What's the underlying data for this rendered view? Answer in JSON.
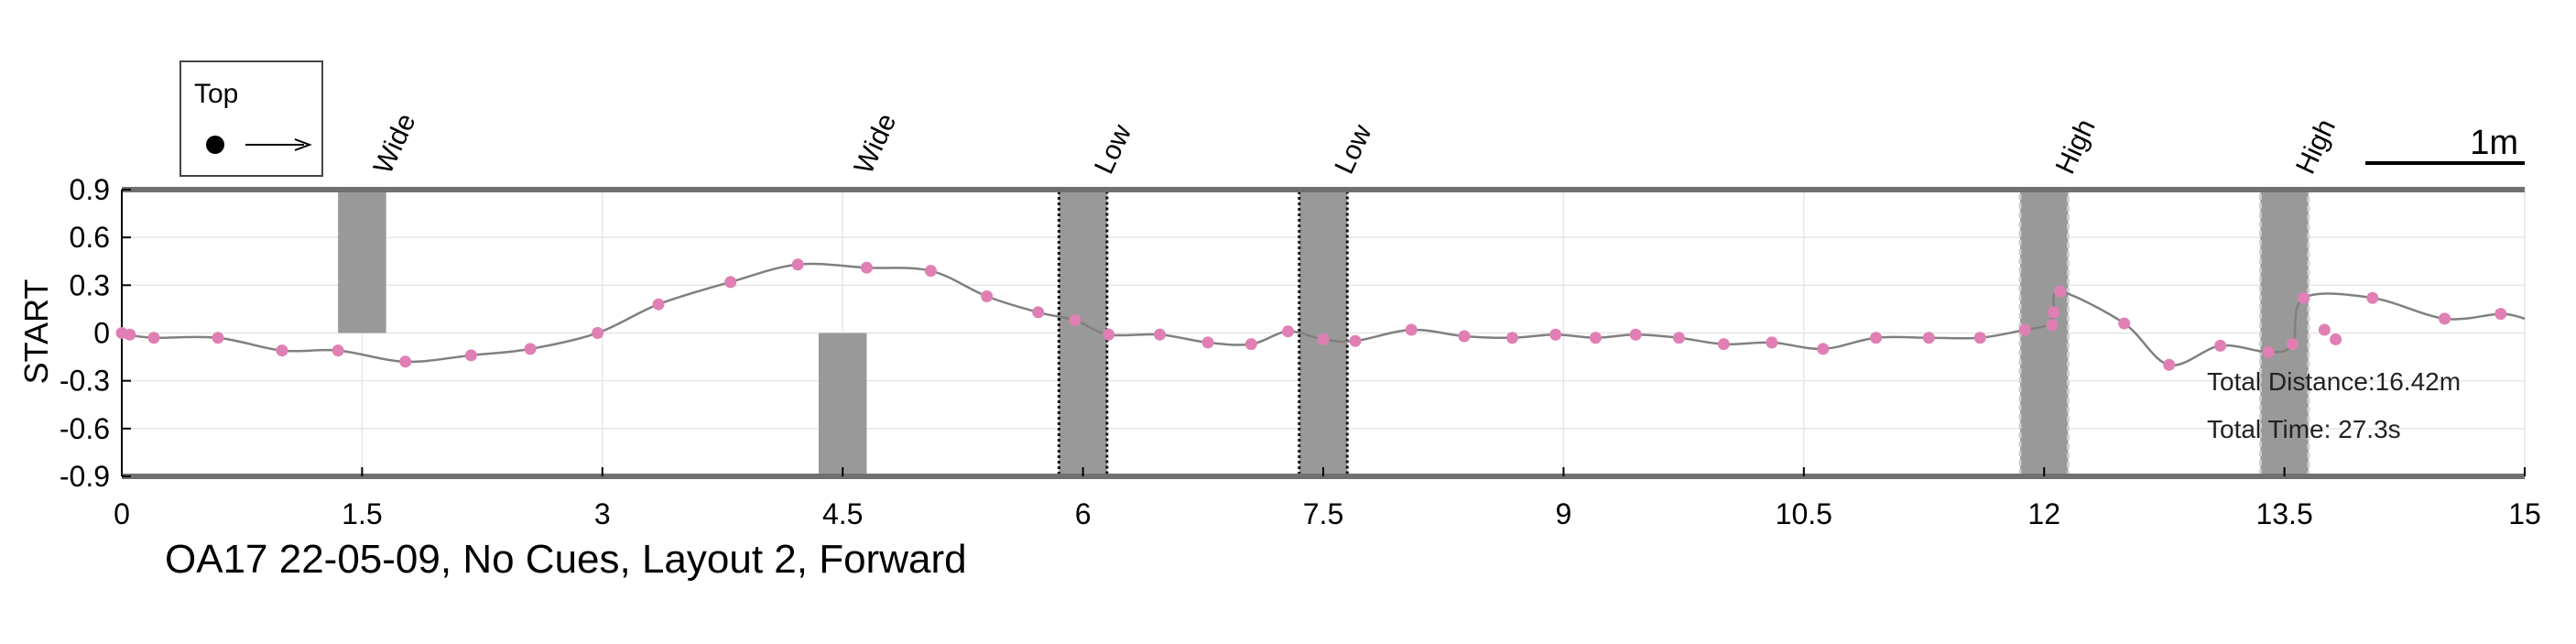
{
  "chart_data": {
    "type": "line",
    "title": "OA17 22-05-09, No Cues, Layout 2, Forward",
    "ylabel": "START",
    "xlim": [
      0,
      15
    ],
    "ylim": [
      -0.9,
      0.9
    ],
    "xticks": [
      0,
      1.5,
      3,
      4.5,
      6,
      7.5,
      9,
      10.5,
      12,
      13.5,
      15
    ],
    "xtick_labels": [
      "0",
      "1.5",
      "3",
      "4.5",
      "6",
      "7.5",
      "9",
      "10.5",
      "12",
      "13.5",
      "15"
    ],
    "yticks": [
      0.9,
      0.6,
      0.3,
      0,
      -0.3,
      -0.6,
      -0.9
    ],
    "ytick_labels": [
      "0.9",
      "0.6",
      "0.3",
      "0",
      "-0.3",
      "-0.6",
      "-0.9"
    ],
    "grid": true,
    "legend": {
      "label": "Top",
      "placement": "top-left"
    },
    "scale_bar_label": "1m",
    "line_color": "#808080",
    "point_color": "#e07fb4",
    "obstacle_color": "#999999",
    "points": [
      [
        0.0,
        0.0
      ],
      [
        0.04,
        -0.01
      ],
      [
        0.2,
        -0.03
      ],
      [
        0.6,
        -0.03
      ],
      [
        1.0,
        -0.11
      ],
      [
        1.35,
        -0.11
      ],
      [
        1.77,
        -0.18
      ],
      [
        2.18,
        -0.14
      ],
      [
        2.55,
        -0.1
      ],
      [
        2.97,
        0.0
      ],
      [
        3.35,
        0.18
      ],
      [
        3.8,
        0.32
      ],
      [
        4.22,
        0.43
      ],
      [
        4.65,
        0.41
      ],
      [
        5.05,
        0.39
      ],
      [
        5.4,
        0.23
      ],
      [
        5.72,
        0.13
      ],
      [
        5.95,
        0.08
      ],
      [
        6.16,
        -0.01
      ],
      [
        6.48,
        -0.01
      ],
      [
        6.78,
        -0.06
      ],
      [
        7.05,
        -0.07
      ],
      [
        7.28,
        0.01
      ],
      [
        7.5,
        -0.04
      ],
      [
        7.7,
        -0.05
      ],
      [
        8.05,
        0.02
      ],
      [
        8.38,
        -0.02
      ],
      [
        8.68,
        -0.03
      ],
      [
        8.95,
        -0.01
      ],
      [
        9.2,
        -0.03
      ],
      [
        9.45,
        -0.01
      ],
      [
        9.72,
        -0.03
      ],
      [
        10.0,
        -0.07
      ],
      [
        10.3,
        -0.06
      ],
      [
        10.62,
        -0.1
      ],
      [
        10.95,
        -0.03
      ],
      [
        11.28,
        -0.03
      ],
      [
        11.6,
        -0.03
      ],
      [
        11.88,
        0.02
      ],
      [
        12.02,
        0.05
      ],
      [
        12.06,
        0.13
      ],
      [
        12.1,
        0.26
      ],
      [
        12.5,
        0.06
      ],
      [
        12.78,
        -0.2
      ],
      [
        13.1,
        -0.08
      ],
      [
        13.4,
        -0.12
      ],
      [
        13.55,
        -0.07
      ],
      [
        13.62,
        0.22
      ],
      [
        14.05,
        0.22
      ],
      [
        14.5,
        0.09
      ],
      [
        14.85,
        0.12
      ],
      [
        15.0,
        0.09
      ]
    ],
    "markers": [
      [
        0.0,
        0.0
      ],
      [
        0.05,
        -0.01
      ],
      [
        0.2,
        -0.03
      ],
      [
        0.6,
        -0.03
      ],
      [
        1.0,
        -0.11
      ],
      [
        1.35,
        -0.11
      ],
      [
        1.77,
        -0.18
      ],
      [
        2.18,
        -0.14
      ],
      [
        2.55,
        -0.1
      ],
      [
        2.97,
        0.0
      ],
      [
        3.35,
        0.18
      ],
      [
        3.8,
        0.32
      ],
      [
        4.22,
        0.43
      ],
      [
        4.65,
        0.41
      ],
      [
        5.05,
        0.39
      ],
      [
        5.4,
        0.23
      ],
      [
        5.72,
        0.13
      ],
      [
        5.95,
        0.08
      ],
      [
        6.16,
        -0.01
      ],
      [
        6.48,
        -0.01
      ],
      [
        6.78,
        -0.06
      ],
      [
        7.05,
        -0.07
      ],
      [
        7.28,
        0.01
      ],
      [
        7.5,
        -0.04
      ],
      [
        7.7,
        -0.05
      ],
      [
        8.05,
        0.02
      ],
      [
        8.38,
        -0.02
      ],
      [
        8.68,
        -0.03
      ],
      [
        8.95,
        -0.01
      ],
      [
        9.2,
        -0.03
      ],
      [
        9.45,
        -0.01
      ],
      [
        9.72,
        -0.03
      ],
      [
        10.0,
        -0.07
      ],
      [
        10.3,
        -0.06
      ],
      [
        10.62,
        -0.1
      ],
      [
        10.95,
        -0.03
      ],
      [
        11.28,
        -0.03
      ],
      [
        11.6,
        -0.03
      ],
      [
        11.88,
        0.02
      ],
      [
        12.05,
        0.05
      ],
      [
        12.06,
        0.13
      ],
      [
        12.1,
        0.26
      ],
      [
        12.5,
        0.06
      ],
      [
        12.78,
        -0.2
      ],
      [
        13.1,
        -0.08
      ],
      [
        13.4,
        -0.12
      ],
      [
        13.55,
        -0.07
      ],
      [
        13.62,
        0.22
      ],
      [
        13.75,
        0.02
      ],
      [
        13.82,
        -0.04
      ],
      [
        14.05,
        0.22
      ],
      [
        14.5,
        0.09
      ],
      [
        14.85,
        0.12
      ]
    ],
    "obstacles": [
      {
        "label": "Wide",
        "x0": 1.35,
        "x1": 1.65,
        "y0": 0.0,
        "y1": 0.9,
        "style": "solid"
      },
      {
        "label": "Wide",
        "x0": 4.35,
        "x1": 4.65,
        "y0": -0.9,
        "y1": 0.0,
        "style": "solid"
      },
      {
        "label": "Low",
        "x0": 5.85,
        "x1": 6.15,
        "y0": -0.9,
        "y1": 0.9,
        "style": "dotted-dark"
      },
      {
        "label": "Low",
        "x0": 7.35,
        "x1": 7.65,
        "y0": -0.9,
        "y1": 0.9,
        "style": "dotted-dark"
      },
      {
        "label": "High",
        "x0": 11.85,
        "x1": 12.15,
        "y0": -0.9,
        "y1": 0.9,
        "style": "dashed-light"
      },
      {
        "label": "High",
        "x0": 13.35,
        "x1": 13.65,
        "y0": -0.9,
        "y1": 0.9,
        "style": "dashed-light"
      }
    ],
    "annotations": [
      "Total Distance:16.42m",
      "Total Time: 27.3s"
    ]
  }
}
